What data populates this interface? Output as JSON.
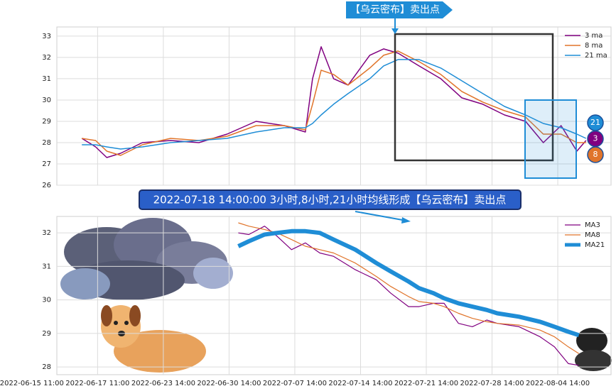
{
  "chart_data": [
    {
      "type": "line",
      "annotation": "【乌云密布】卖出点",
      "xlim": [
        0.38,
        8.81
      ],
      "xticks": [
        1,
        2,
        3,
        4,
        5,
        6,
        7,
        8
      ],
      "ylim": [
        26,
        33.43
      ],
      "yticks": [
        26,
        27,
        28,
        29,
        30,
        31,
        32,
        33
      ],
      "grid": true,
      "legend": "upper right",
      "x": [
        0.76,
        0.97,
        1.14,
        1.35,
        1.68,
        2.11,
        2.54,
        2.97,
        3.41,
        3.84,
        4.16,
        4.27,
        4.4,
        4.59,
        4.81,
        5.14,
        5.35,
        5.57,
        5.89,
        6.22,
        6.54,
        6.86,
        7.19,
        7.51,
        7.78,
        8.05,
        8.29,
        8.43
      ],
      "series": [
        {
          "name": "3 ma",
          "color": "#800080",
          "width": 1.5,
          "values": [
            28.2,
            27.8,
            27.3,
            27.5,
            28.0,
            28.1,
            28.0,
            28.4,
            29.0,
            28.8,
            28.5,
            31.0,
            32.5,
            31.0,
            30.7,
            32.1,
            32.4,
            32.2,
            31.6,
            31.0,
            30.1,
            29.8,
            29.3,
            29.0,
            28.0,
            28.8,
            27.6,
            28.1
          ]
        },
        {
          "name": "8 ma",
          "color": "#e0742a",
          "width": 1.5,
          "values": [
            28.2,
            28.1,
            27.6,
            27.4,
            27.9,
            28.2,
            28.1,
            28.3,
            28.8,
            28.8,
            28.6,
            29.8,
            31.4,
            31.2,
            30.7,
            31.5,
            32.1,
            32.3,
            31.8,
            31.2,
            30.4,
            29.9,
            29.5,
            29.2,
            28.4,
            28.4,
            28.0,
            28.0
          ]
        },
        {
          "name": "21 ma",
          "color": "#1f8dd6",
          "width": 1.5,
          "values": [
            27.9,
            27.9,
            27.8,
            27.7,
            27.8,
            28.0,
            28.1,
            28.2,
            28.5,
            28.7,
            28.7,
            28.9,
            29.3,
            29.8,
            30.3,
            31.0,
            31.6,
            31.9,
            31.9,
            31.5,
            30.9,
            30.3,
            29.7,
            29.3,
            28.9,
            28.7,
            28.4,
            28.2
          ]
        }
      ],
      "badges": [
        {
          "text": "21",
          "color": "#1f8dd6"
        },
        {
          "text": "3",
          "color": "#800080"
        },
        {
          "text": "8",
          "color": "#e0742a"
        }
      ]
    },
    {
      "type": "line",
      "title": "2022-07-18 14:00:00 3小时,8小时,21小时均线形成【乌云密布】卖出点",
      "xlim": [
        0.38,
        8.81
      ],
      "xticks": [
        {
          "value": 0,
          "label": "2022-06-15 11:00"
        },
        {
          "value": 1,
          "label": "2022-06-17 11:00"
        },
        {
          "value": 2,
          "label": "2022-06-23 14:00"
        },
        {
          "value": 3,
          "label": "2022-06-30 14:00"
        },
        {
          "value": 4,
          "label": "2022-07-07 14:00"
        },
        {
          "value": 5,
          "label": "2022-07-14 14:00"
        },
        {
          "value": 6,
          "label": "2022-07-21 14:00"
        },
        {
          "value": 7,
          "label": "2022-07-28 14:00"
        },
        {
          "value": 8,
          "label": "2022-08-04 14:00"
        }
      ],
      "ylim": [
        27.77,
        32.49
      ],
      "yticks": [
        28,
        29,
        30,
        31,
        32
      ],
      "grid": true,
      "legend": "upper right",
      "x": [
        3.14,
        3.3,
        3.54,
        3.73,
        3.95,
        4.16,
        4.38,
        4.59,
        4.92,
        5.24,
        5.46,
        5.73,
        5.89,
        6.11,
        6.27,
        6.49,
        6.7,
        6.92,
        7.08,
        7.41,
        7.73,
        7.95,
        8.16,
        8.32
      ],
      "series": [
        {
          "name": "MA3",
          "color": "#800080",
          "width": 1.2,
          "values": [
            32.0,
            31.95,
            32.2,
            31.9,
            31.5,
            31.7,
            31.4,
            31.3,
            30.9,
            30.6,
            30.2,
            29.8,
            29.8,
            29.9,
            29.9,
            29.3,
            29.2,
            29.4,
            29.3,
            29.2,
            28.9,
            28.6,
            28.1,
            28.05
          ]
        },
        {
          "name": "MA8",
          "color": "#e0742a",
          "width": 1.2,
          "values": [
            32.3,
            32.2,
            32.1,
            32.0,
            31.8,
            31.6,
            31.5,
            31.4,
            31.1,
            30.7,
            30.4,
            30.1,
            29.95,
            29.9,
            29.8,
            29.6,
            29.45,
            29.35,
            29.3,
            29.25,
            29.1,
            28.9,
            28.6,
            28.4
          ]
        },
        {
          "name": "MA21",
          "color": "#1f8dd6",
          "width": 6,
          "values": [
            31.6,
            31.75,
            31.95,
            32.0,
            32.05,
            32.05,
            32.0,
            31.8,
            31.5,
            31.1,
            30.85,
            30.55,
            30.35,
            30.2,
            30.05,
            29.9,
            29.8,
            29.7,
            29.6,
            29.5,
            29.35,
            29.2,
            29.05,
            28.95
          ]
        }
      ]
    }
  ]
}
